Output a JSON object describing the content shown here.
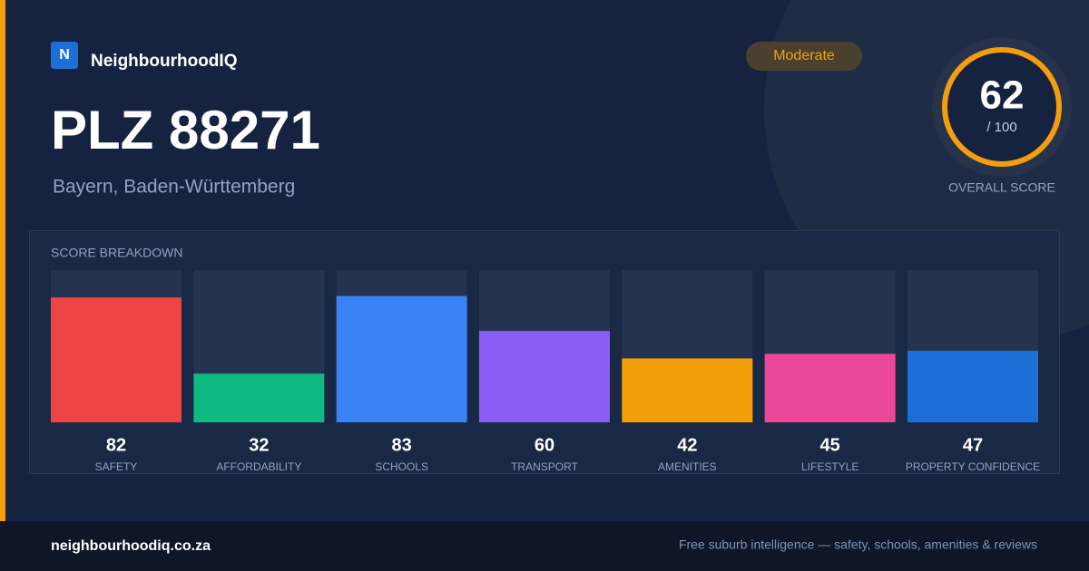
{
  "brand": {
    "logo": "N",
    "name": "NeighbourhoodIQ"
  },
  "header": {
    "title": "PLZ 88271",
    "subtitle": "Bayern, Baden-Württemberg",
    "badge": "Moderate"
  },
  "score": {
    "value": 62,
    "out_of": "/ 100",
    "label": "OVERALL SCORE"
  },
  "chart_data": {
    "type": "bar",
    "title": "SCORE BREAKDOWN",
    "categories": [
      "SAFETY",
      "AFFORDABILITY",
      "SCHOOLS",
      "TRANSPORT",
      "AMENITIES",
      "LIFESTYLE",
      "PROPERTY CONFIDENCE"
    ],
    "values": [
      82,
      32,
      83,
      60,
      42,
      45,
      47
    ],
    "colors": [
      "#ef4444",
      "#10b981",
      "#3b82f6",
      "#8b5cf6",
      "#f59e0b",
      "#ec4899",
      "#1d6fd8"
    ],
    "ylim": [
      0,
      100
    ]
  },
  "footer": {
    "site": "neighbourhoodiq.co.za",
    "tagline": "Free suburb intelligence — safety, schools, amenities & reviews"
  }
}
